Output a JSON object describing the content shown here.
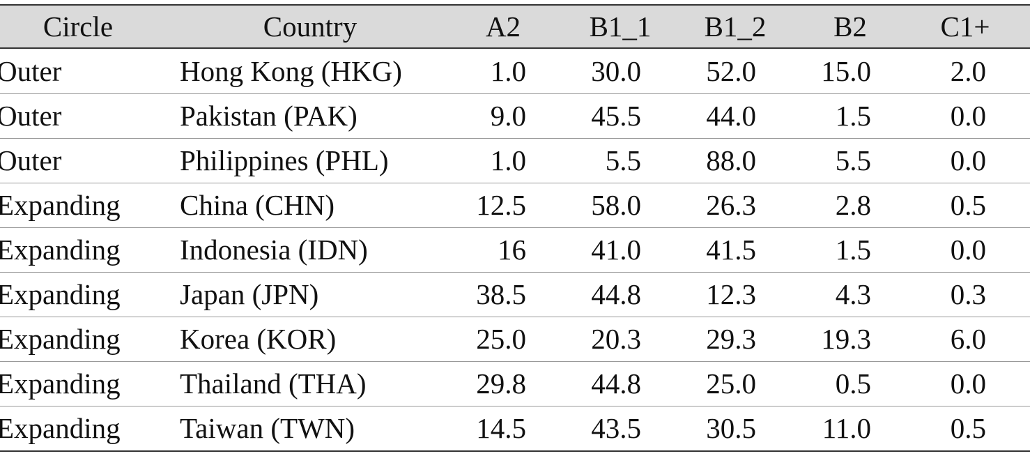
{
  "table": {
    "header": [
      "Circle",
      "Country",
      "A2",
      "B1_1",
      "B1_2",
      "B2",
      "C1+"
    ],
    "rows": [
      [
        "Outer",
        "Hong Kong (HKG)",
        "1.0",
        "30.0",
        "52.0",
        "15.0",
        "2.0"
      ],
      [
        "Outer",
        "Pakistan (PAK)",
        "9.0",
        "45.5",
        "44.0",
        "1.5",
        "0.0"
      ],
      [
        "Outer",
        "Philippines (PHL)",
        "1.0",
        "5.5",
        "88.0",
        "5.5",
        "0.0"
      ],
      [
        "Expanding",
        "China (CHN)",
        "12.5",
        "58.0",
        "26.3",
        "2.8",
        "0.5"
      ],
      [
        "Expanding",
        "Indonesia (IDN)",
        "16",
        "41.0",
        "41.5",
        "1.5",
        "0.0"
      ],
      [
        "Expanding",
        "Japan (JPN)",
        "38.5",
        "44.8",
        "12.3",
        "4.3",
        "0.3"
      ],
      [
        "Expanding",
        "Korea (KOR)",
        "25.0",
        "20.3",
        "29.3",
        "19.3",
        "6.0"
      ],
      [
        "Expanding",
        "Thailand (THA)",
        "29.8",
        "44.8",
        "25.0",
        "0.5",
        "0.0"
      ],
      [
        "Expanding",
        "Taiwan (TWN)",
        "14.5",
        "43.5",
        "30.5",
        "11.0",
        "0.5"
      ]
    ]
  }
}
